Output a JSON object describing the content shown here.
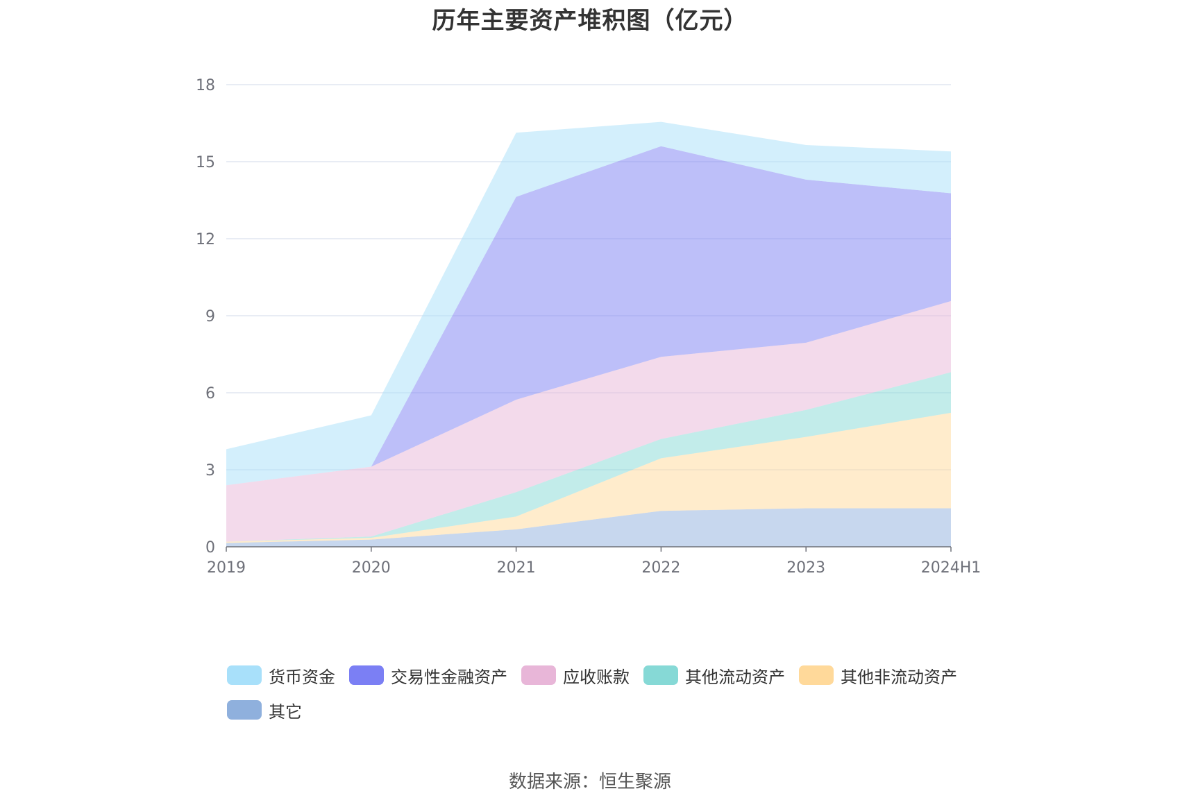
{
  "chart_data": {
    "type": "area",
    "stacked": true,
    "title": "历年主要资产堆积图（亿元）",
    "categories": [
      "2019",
      "2020",
      "2021",
      "2022",
      "2023",
      "2024H1"
    ],
    "ylim": [
      0,
      18
    ],
    "yticks": [
      "0",
      "3",
      "6",
      "9",
      "12",
      "15",
      "18"
    ],
    "grid": true,
    "legend_position": "bottom",
    "series": [
      {
        "name": "其它",
        "color": "#8fb0dd",
        "values": [
          0.15,
          0.28,
          0.68,
          1.4,
          1.5,
          1.5
        ]
      },
      {
        "name": "其他非流动资产",
        "color": "#ffd99a",
        "values": [
          0.05,
          0.07,
          0.5,
          2.05,
          2.78,
          3.72
        ]
      },
      {
        "name": "其他流动资产",
        "color": "#86d9d6",
        "values": [
          0.0,
          0.05,
          0.95,
          0.75,
          1.05,
          1.58
        ]
      },
      {
        "name": "应收账款",
        "color": "#e8b6d8",
        "values": [
          2.2,
          2.72,
          3.6,
          3.2,
          2.62,
          2.77
        ]
      },
      {
        "name": "交易性金融资产",
        "color": "#7b7ff4",
        "values": [
          0.0,
          0.0,
          7.9,
          8.2,
          6.35,
          4.2
        ]
      },
      {
        "name": "货币资金",
        "color": "#a8e0fa",
        "values": [
          1.4,
          2.0,
          2.5,
          0.95,
          1.35,
          1.63
        ]
      }
    ]
  },
  "source_text": "数据来源：恒生聚源"
}
